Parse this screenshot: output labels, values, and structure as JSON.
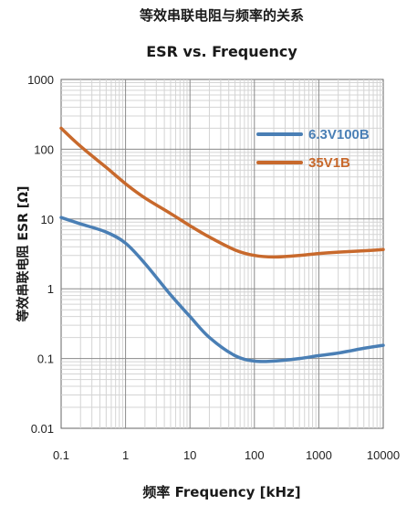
{
  "chart_data": {
    "type": "line",
    "title": "等效串联电阻与频率的关系",
    "subtitle": "ESR vs. Frequency",
    "xlabel": "频率 Frequency [kHz]",
    "ylabel": "等效串联电阻 ESR [Ω]",
    "x_scale": "log",
    "y_scale": "log",
    "xlim": [
      0.1,
      10000
    ],
    "ylim": [
      0.01,
      1000
    ],
    "x_ticks": [
      "0.1",
      "1",
      "10",
      "100",
      "1000",
      "10000"
    ],
    "y_ticks": [
      "1000",
      "100",
      "10",
      "1",
      "0.1",
      "0.01"
    ],
    "grid": true,
    "legend_position": "top-right",
    "series": [
      {
        "name": "6.3V100B",
        "color": "#4a7fb5",
        "x": [
          0.1,
          0.2,
          0.5,
          1,
          2,
          5,
          10,
          20,
          50,
          100,
          200,
          500,
          1000,
          2000,
          5000,
          10000
        ],
        "y": [
          10.5,
          8.5,
          6.5,
          4.5,
          2.3,
          0.82,
          0.4,
          0.2,
          0.11,
          0.092,
          0.092,
          0.1,
          0.11,
          0.12,
          0.14,
          0.155
        ]
      },
      {
        "name": "35V1B",
        "color": "#c8692c",
        "x": [
          0.1,
          0.2,
          0.5,
          1,
          2,
          5,
          10,
          20,
          50,
          100,
          200,
          500,
          1000,
          2000,
          5000,
          10000
        ],
        "y": [
          200,
          110,
          55,
          32,
          20,
          12,
          8,
          5.5,
          3.6,
          3.0,
          2.85,
          3.0,
          3.2,
          3.35,
          3.5,
          3.65
        ]
      }
    ]
  }
}
